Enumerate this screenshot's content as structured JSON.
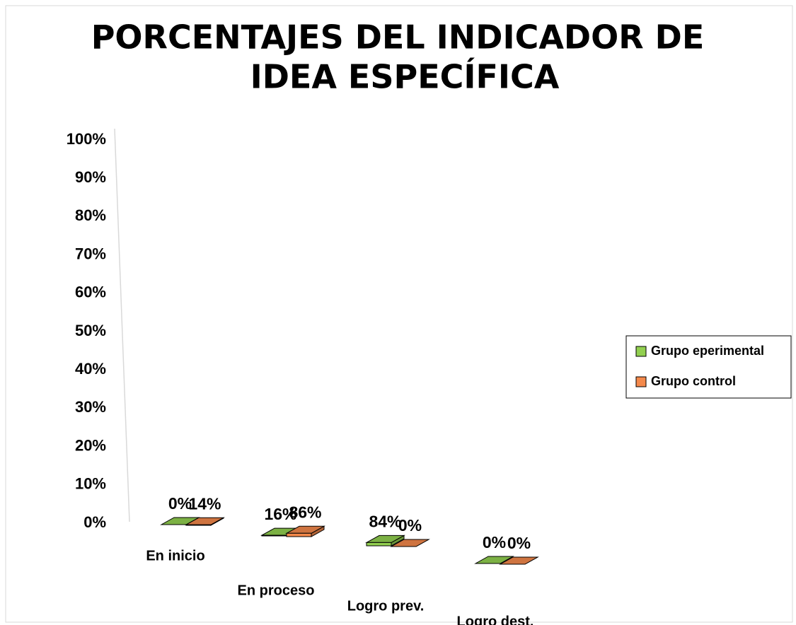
{
  "chart_data": {
    "type": "bar3d",
    "title": "PORCENTAJES DEL INDICADOR DE",
    "title_line2": "IDEA ESPECÍFICA",
    "categories": [
      "En inicio",
      "En proceso",
      "Logro prev.",
      "Logro dest."
    ],
    "series": [
      {
        "name": "Grupo eperimental",
        "color": "#92d050",
        "values": [
          0,
          16,
          84,
          0
        ],
        "value_labels": [
          "0%",
          "16%",
          "84%",
          "0%"
        ]
      },
      {
        "name": "Grupo control",
        "color": "#f4894b",
        "values": [
          14,
          86,
          0,
          0
        ],
        "value_labels": [
          "14%",
          "86%",
          "0%",
          "0%"
        ]
      }
    ],
    "ylim": [
      0,
      100
    ],
    "yticks": [
      {
        "value": 0,
        "label": "0%"
      },
      {
        "value": 10,
        "label": "10%"
      },
      {
        "value": 20,
        "label": "20%"
      },
      {
        "value": 30,
        "label": "30%"
      },
      {
        "value": 40,
        "label": "40%"
      },
      {
        "value": 50,
        "label": "50%"
      },
      {
        "value": 60,
        "label": "60%"
      },
      {
        "value": 70,
        "label": "70%"
      },
      {
        "value": 80,
        "label": "80%"
      },
      {
        "value": 90,
        "label": "90%"
      },
      {
        "value": 100,
        "label": "100%"
      }
    ],
    "legend": "right",
    "grid": false
  }
}
